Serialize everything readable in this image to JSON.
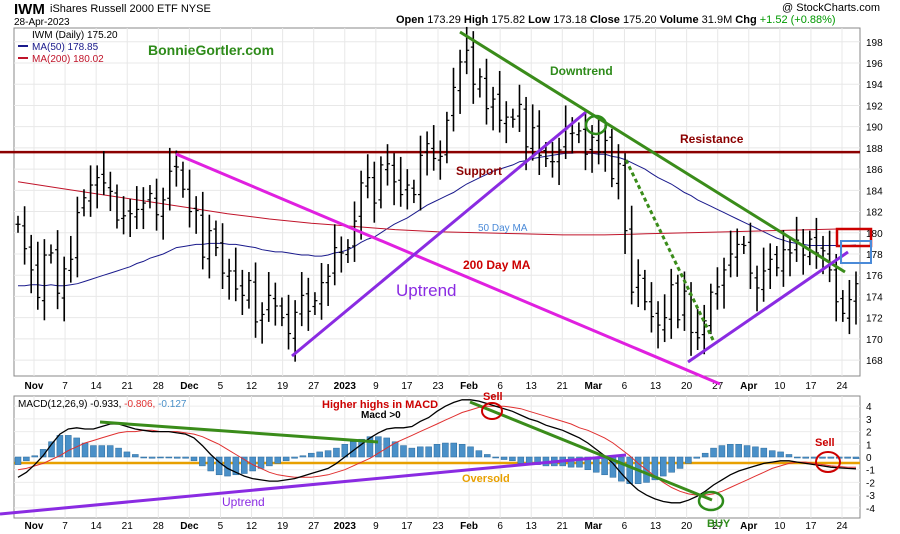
{
  "header": {
    "symbol": "IWM",
    "name": "iShares Russell 2000 ETF",
    "exchange": "NYSE",
    "date": "28-Apr-2023",
    "open_label": "Open",
    "open": "173.29",
    "high_label": "High",
    "high": "175.82",
    "low_label": "Low",
    "low": "173.18",
    "close_label": "Close",
    "close": "175.20",
    "volume_label": "Volume",
    "volume": "31.9M",
    "chg_label": "Chg",
    "chg": "+1.52 (+0.88%)",
    "watermark": "@ StockCharts.com"
  },
  "legend": {
    "price": "IWM (Daily) 175.20",
    "ma50": "MA(50) 178.85",
    "ma200": "MA(200) 180.02",
    "macd": "MACD(12,26,9) -0.933, -0.806, -0.127",
    "macd_parts": {
      "label": "MACD(12,26,9)",
      "v1": "-0.933,",
      "v2": "-0.806,",
      "v3": "-0.127"
    }
  },
  "colors": {
    "price": "#000000",
    "ma50": "#1a1a8c",
    "ma200": "#c0142a",
    "resistance": "#8b0000",
    "downtrend": "#3a8c1a",
    "uptrend": "#8a2be2",
    "magenta": "#e020e0",
    "hist": "#4a90c8",
    "signal": "#e03030",
    "zero": "#e8a000",
    "annot_green": "#2e8b1a",
    "annot_red": "#cc0000",
    "annot_purple": "#8a2be2"
  },
  "annotations": {
    "site": "BonnieGortler.com",
    "downtrend": "Downtrend",
    "resistance": "Resistance",
    "support": "Support",
    "ma50": "50 Day MA",
    "ma200": "200 Day MA",
    "uptrend_price": "Uptrend",
    "higher_highs": "Higher highs in MACD",
    "macd_gt0": "Macd >0",
    "sell1": "Sell",
    "sell2": "Sell",
    "oversold": "Oversold",
    "uptrend_macd": "Uptrend",
    "buy": "BUY"
  },
  "chart_data": [
    {
      "type": "ohlc",
      "title": "IWM iShares Russell 2000 ETF (Daily)",
      "y_ticks": [
        168,
        170,
        172,
        174,
        176,
        178,
        180,
        182,
        184,
        186,
        188,
        190,
        192,
        194,
        196,
        198
      ],
      "ylim": [
        166.5,
        199.3
      ],
      "x_labels": [
        "Nov",
        "7",
        "14",
        "21",
        "28",
        "Dec",
        "5",
        "12",
        "19",
        "27",
        "2023",
        "9",
        "17",
        "23",
        "Feb",
        "6",
        "13",
        "21",
        "Mar",
        "6",
        "13",
        "20",
        "27",
        "Apr",
        "10",
        "17",
        "24"
      ],
      "series": [
        {
          "name": "IWM (Daily) 175.20",
          "close": [
            180.8,
            178.5,
            176.5,
            173.9,
            177.9,
            178.1,
            174.3,
            176.6,
            177.5,
            181.9,
            183.3,
            184.5,
            185.2,
            184.7,
            183.9,
            181.2,
            181.6,
            181.8,
            182.2,
            182.8,
            183.7,
            181.7,
            183.1,
            185.8,
            186.2,
            184.1,
            182.0,
            182.1,
            177.7,
            180.2,
            178.6,
            176.2,
            176.4,
            174.7,
            174.1,
            175.5,
            171.6,
            172.3,
            174.1,
            173.1,
            172.0,
            170.5,
            172.5,
            174.1,
            172.6,
            173.6,
            175.3,
            175.9,
            178.6,
            178.1,
            178.6,
            181.1,
            184.7,
            185.2,
            182.8,
            186.4,
            186.5,
            184.8,
            183.6,
            184.5,
            183.6,
            187.3,
            188.4,
            187.0,
            187.2,
            190.6,
            193.7,
            196.1,
            197.2,
            194.0,
            194.7,
            191.7,
            192.6,
            190.6,
            190.9,
            190.7,
            192.1,
            188.1,
            189.9,
            187.3,
            187.0,
            186.7,
            187.8,
            189.8,
            189.4,
            189.6,
            187.4,
            189.0,
            187.6,
            188.7,
            185.1,
            186.5,
            180.2,
            174.4,
            176.0,
            173.5,
            172.1,
            171.3,
            172.0,
            175.1,
            171.8,
            174.5,
            170.6,
            170.1,
            171.7,
            174.4,
            174.9,
            176.5,
            178.0,
            178.9,
            178.8,
            176.2,
            174.8,
            176.4,
            177.5,
            176.7,
            178.4,
            178.1,
            179.3,
            177.9,
            179.4,
            178.1,
            178.3,
            176.5,
            173.5,
            172.4,
            173.7,
            175.2
          ]
        }
      ],
      "ma50": [
        175.0,
        175.0,
        175.1,
        175.1,
        175.0,
        175.1,
        175.0,
        175.0,
        175.1,
        175.2,
        175.4,
        175.6,
        175.8,
        176.0,
        176.2,
        176.4,
        176.6,
        176.8,
        177.1,
        177.3,
        177.6,
        177.8,
        178.0,
        178.3,
        178.6,
        178.7,
        178.8,
        178.9,
        178.9,
        179.0,
        179.0,
        179.0,
        178.9,
        178.9,
        178.8,
        178.7,
        178.6,
        178.4,
        178.3,
        178.2,
        178.2,
        178.1,
        178.0,
        177.9,
        177.9,
        177.8,
        177.8,
        177.9,
        178.1,
        178.2,
        178.4,
        178.7,
        179.1,
        179.4,
        179.6,
        180.0,
        180.4,
        180.8,
        181.1,
        181.4,
        181.8,
        182.2,
        182.6,
        182.9,
        183.2,
        183.5,
        183.8,
        184.2,
        184.6,
        184.9,
        185.2,
        185.5,
        185.8,
        186.0,
        186.2,
        186.4,
        186.7,
        186.8,
        187.0,
        187.1,
        187.2,
        187.3,
        187.4,
        187.5,
        187.5,
        187.6,
        187.5,
        187.5,
        187.4,
        187.4,
        187.2,
        187.1,
        186.9,
        186.6,
        186.3,
        186.0,
        185.6,
        185.2,
        184.9,
        184.6,
        184.2,
        183.8,
        183.5,
        183.1,
        182.8,
        182.5,
        182.2,
        181.9,
        181.6,
        181.3,
        181.0,
        180.7,
        180.4,
        180.1,
        179.8,
        179.5,
        179.3,
        179.1,
        179.0,
        178.9,
        178.8,
        178.8,
        178.8,
        178.8,
        178.8,
        178.8,
        178.8,
        178.85
      ]
    },
    {
      "type": "macd",
      "y_ticks": [
        -4,
        -3,
        -2,
        -1,
        0,
        1,
        2,
        3,
        4
      ],
      "ylim": [
        -4.8,
        4.8
      ],
      "series": [
        {
          "name": "MACD",
          "values": [
            -1.6,
            -1.2,
            -0.6,
            0.1,
            1.0,
            1.8,
            2.2,
            2.3,
            2.2,
            2.2,
            2.4,
            2.6,
            2.6,
            2.4,
            2.2,
            2.1,
            2.0,
            2.0,
            2.0,
            1.9,
            1.8,
            1.5,
            0.9,
            0.2,
            -0.4,
            -0.9,
            -1.2,
            -1.5,
            -1.7,
            -1.8,
            -1.9,
            -1.9,
            -1.8,
            -1.7,
            -1.5,
            -1.3,
            -1.1,
            -0.9,
            -0.5,
            0.0,
            0.5,
            1.0,
            1.5,
            1.9,
            2.2,
            2.3,
            2.3,
            2.4,
            2.8,
            3.1,
            3.6,
            4.0,
            4.3,
            4.5,
            4.5,
            4.4,
            4.2,
            4.0,
            3.8,
            3.6,
            3.3,
            3.0,
            2.8,
            2.5,
            2.3,
            2.1,
            1.8,
            1.5,
            1.1,
            0.6,
            0.1,
            -0.5,
            -1.3,
            -2.0,
            -2.6,
            -3.0,
            -3.3,
            -3.5,
            -3.6,
            -3.6,
            -3.4,
            -3.1,
            -2.7,
            -2.2,
            -1.8,
            -1.4,
            -1.1,
            -0.9,
            -0.7,
            -0.5,
            -0.4,
            -0.3,
            -0.3,
            -0.4,
            -0.5,
            -0.6,
            -0.7,
            -0.8,
            -0.85,
            -0.9,
            -0.93
          ]
        },
        {
          "name": "Signal",
          "values": [
            -1.0,
            -0.9,
            -0.7,
            -0.5,
            -0.2,
            0.1,
            0.5,
            0.8,
            1.1,
            1.3,
            1.5,
            1.7,
            1.9,
            2.0,
            2.0,
            2.1,
            2.1,
            2.0,
            2.0,
            2.0,
            1.9,
            1.8,
            1.6,
            1.3,
            1.0,
            0.6,
            0.2,
            -0.2,
            -0.6,
            -0.9,
            -1.2,
            -1.4,
            -1.5,
            -1.6,
            -1.6,
            -1.6,
            -1.5,
            -1.4,
            -1.2,
            -1.0,
            -0.7,
            -0.4,
            -0.1,
            0.3,
            0.7,
            1.1,
            1.4,
            1.7,
            2.0,
            2.3,
            2.6,
            2.9,
            3.2,
            3.5,
            3.7,
            3.9,
            4.0,
            4.0,
            4.0,
            3.9,
            3.8,
            3.6,
            3.4,
            3.2,
            3.0,
            2.8,
            2.6,
            2.3,
            2.1,
            1.8,
            1.5,
            1.1,
            0.6,
            0.1,
            -0.5,
            -1.0,
            -1.5,
            -2.0,
            -2.4,
            -2.7,
            -2.9,
            -3.0,
            -3.0,
            -2.9,
            -2.7,
            -2.4,
            -2.1,
            -1.8,
            -1.5,
            -1.2,
            -0.9,
            -0.7,
            -0.5,
            -0.4,
            -0.4,
            -0.5,
            -0.6,
            -0.7,
            -0.75,
            -0.8,
            -0.806
          ]
        },
        {
          "name": "Histogram",
          "values": [
            -0.6,
            -0.3,
            0.1,
            0.6,
            1.2,
            1.7,
            1.7,
            1.5,
            1.1,
            0.9,
            0.9,
            0.9,
            0.7,
            0.4,
            0.2,
            0.0,
            -0.1,
            0.0,
            0.0,
            -0.1,
            -0.1,
            -0.3,
            -0.7,
            -1.1,
            -1.4,
            -1.5,
            -1.4,
            -1.3,
            -1.1,
            -0.9,
            -0.7,
            -0.5,
            -0.3,
            -0.1,
            0.1,
            0.3,
            0.4,
            0.5,
            0.7,
            1.0,
            1.2,
            1.4,
            1.6,
            1.6,
            1.5,
            1.2,
            0.9,
            0.7,
            0.8,
            0.8,
            1.0,
            1.1,
            1.1,
            1.0,
            0.8,
            0.5,
            0.2,
            0.0,
            -0.2,
            -0.3,
            -0.5,
            -0.6,
            -0.6,
            -0.7,
            -0.7,
            -0.7,
            -0.8,
            -0.8,
            -1.0,
            -1.2,
            -1.4,
            -1.6,
            -1.9,
            -2.1,
            -2.1,
            -2.0,
            -1.8,
            -1.5,
            -1.2,
            -0.9,
            -0.5,
            -0.1,
            0.3,
            0.7,
            0.9,
            1.0,
            1.0,
            0.9,
            0.8,
            0.7,
            0.5,
            0.4,
            0.2,
            0.0,
            -0.1,
            -0.1,
            -0.1,
            -0.1,
            -0.1,
            -0.1,
            -0.127
          ]
        }
      ]
    }
  ]
}
